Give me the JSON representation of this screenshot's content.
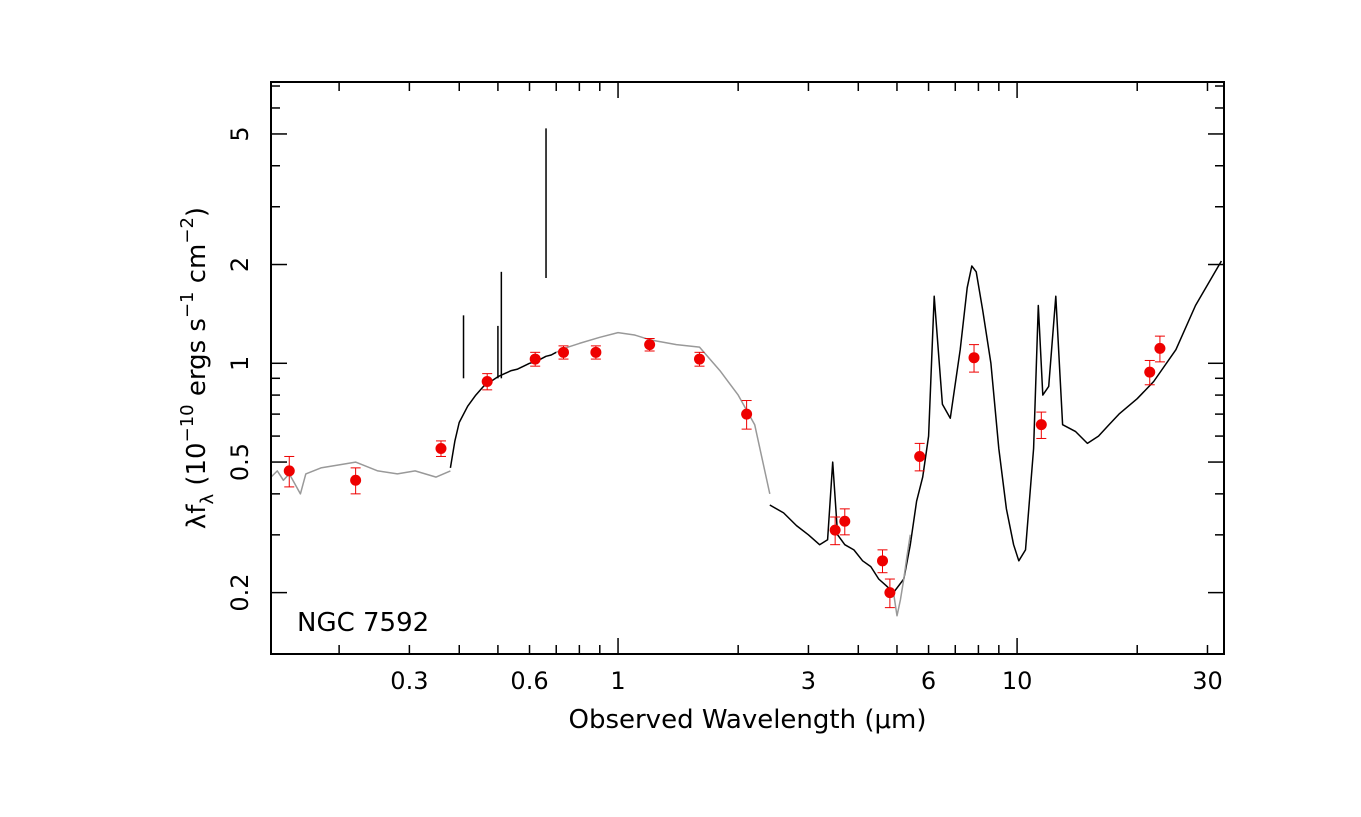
{
  "chart_data": {
    "type": "scatter",
    "annotation": "NGC 7592",
    "xlabel": "Observed Wavelength (μm)",
    "ylabel": {
      "prefix": "λf",
      "sub": "λ",
      "open": " (10",
      "exp1": "−10",
      "mid1": " ergs s",
      "exp2": "−1",
      "mid2": " cm",
      "exp3": "−2",
      "close": ")"
    },
    "xscale": "log",
    "yscale": "log",
    "xlim": [
      0.135,
      33
    ],
    "ylim": [
      0.13,
      7.2
    ],
    "xticks": [
      0.3,
      0.6,
      1,
      3,
      6,
      10,
      30
    ],
    "xtick_labels": [
      "0.3",
      "0.6",
      "1",
      "3",
      "6",
      "10",
      "30"
    ],
    "yticks": [
      0.2,
      0.5,
      1,
      2,
      5
    ],
    "ytick_labels": [
      "0.2",
      "0.5",
      "1",
      "2",
      "5"
    ],
    "grid": false,
    "colors": {
      "points": "#ee0000",
      "spectrum": "#000000",
      "model": "#999999",
      "axes": "#000000"
    },
    "series": [
      {
        "kind": "points",
        "x": [
          0.15,
          0.22,
          0.36,
          0.47,
          0.62,
          0.73,
          0.88,
          1.2,
          1.6,
          2.1,
          3.5,
          3.7,
          4.6,
          4.8,
          5.7,
          7.8,
          11.5,
          21.5,
          22.8
        ],
        "y": [
          0.47,
          0.44,
          0.55,
          0.88,
          1.03,
          1.08,
          1.08,
          1.14,
          1.03,
          0.7,
          0.31,
          0.33,
          0.25,
          0.2,
          0.52,
          1.04,
          0.65,
          0.94,
          1.11
        ],
        "yerr": [
          0.05,
          0.04,
          0.03,
          0.05,
          0.05,
          0.05,
          0.05,
          0.05,
          0.05,
          0.07,
          0.03,
          0.03,
          0.02,
          0.02,
          0.05,
          0.1,
          0.06,
          0.08,
          0.1
        ]
      },
      {
        "kind": "spectrum",
        "x": [
          0.38,
          0.39,
          0.4,
          0.42,
          0.44,
          0.46,
          0.48,
          0.5,
          0.52,
          0.54,
          0.56,
          0.58,
          0.6,
          0.62,
          0.64,
          0.66,
          0.68,
          0.7
        ],
        "y": [
          0.48,
          0.58,
          0.66,
          0.74,
          0.8,
          0.85,
          0.88,
          0.91,
          0.93,
          0.95,
          0.96,
          0.98,
          1.0,
          1.01,
          1.03,
          1.05,
          1.06,
          1.08
        ]
      },
      {
        "kind": "spectrum",
        "x": [
          2.4,
          2.6,
          2.8,
          3.0,
          3.2,
          3.35,
          3.45,
          3.55,
          3.7,
          3.9,
          4.1,
          4.3,
          4.5,
          4.7,
          4.9,
          5.2,
          5.4,
          5.6,
          5.8,
          6.0,
          6.2,
          6.5,
          6.8,
          7.2,
          7.5,
          7.7,
          7.9,
          8.2,
          8.6,
          9.0,
          9.4,
          9.8,
          10.1,
          10.5,
          11.0,
          11.3,
          11.6,
          12.0,
          12.5,
          13.0,
          14.0,
          15.0,
          16.0,
          17.0,
          18.0,
          20.0,
          22.0,
          25.0,
          28.0,
          32.5
        ],
        "y": [
          0.37,
          0.35,
          0.32,
          0.3,
          0.28,
          0.29,
          0.5,
          0.3,
          0.28,
          0.27,
          0.25,
          0.24,
          0.22,
          0.21,
          0.2,
          0.22,
          0.28,
          0.38,
          0.45,
          0.6,
          1.6,
          0.75,
          0.68,
          1.1,
          1.7,
          1.98,
          1.9,
          1.45,
          1.0,
          0.55,
          0.36,
          0.28,
          0.25,
          0.27,
          0.55,
          1.5,
          0.8,
          0.85,
          1.6,
          0.65,
          0.62,
          0.57,
          0.6,
          0.65,
          0.7,
          0.78,
          0.88,
          1.1,
          1.5,
          2.05
        ]
      },
      {
        "kind": "model",
        "x": [
          0.135,
          0.14,
          0.145,
          0.15,
          0.16,
          0.165,
          0.18,
          0.2,
          0.22,
          0.25,
          0.28,
          0.31,
          0.35,
          0.38
        ],
        "y": [
          0.45,
          0.47,
          0.44,
          0.46,
          0.4,
          0.46,
          0.48,
          0.49,
          0.5,
          0.47,
          0.46,
          0.47,
          0.45,
          0.47
        ]
      },
      {
        "kind": "model",
        "x": [
          0.7,
          0.75,
          0.8,
          0.9,
          1.0,
          1.1,
          1.2,
          1.4,
          1.6,
          1.8,
          2.0,
          2.2,
          2.4
        ],
        "y": [
          1.08,
          1.12,
          1.15,
          1.2,
          1.24,
          1.22,
          1.18,
          1.14,
          1.12,
          0.95,
          0.8,
          0.65,
          0.4
        ]
      },
      {
        "kind": "model",
        "x": [
          4.9,
          5.0,
          5.1,
          5.2,
          5.3,
          5.4
        ],
        "y": [
          0.2,
          0.17,
          0.19,
          0.22,
          0.26,
          0.3
        ]
      },
      {
        "kind": "spike",
        "x": [
          0.41,
          0.5,
          0.51,
          0.66
        ],
        "y": [
          1.4,
          1.3,
          1.9,
          5.2
        ]
      }
    ]
  }
}
